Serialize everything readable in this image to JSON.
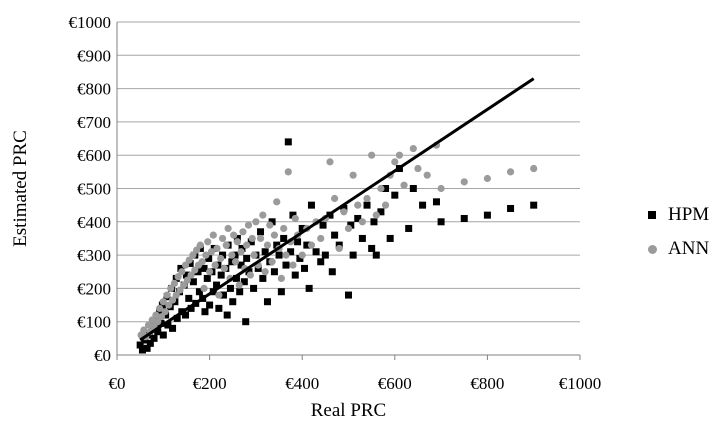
{
  "chart_data": {
    "type": "scatter",
    "xlabel": "Real PRC",
    "ylabel": "Estimated PRC",
    "xlim": [
      0,
      1000
    ],
    "ylim": [
      0,
      1000
    ],
    "x_ticks": [
      "€0",
      "€200",
      "€400",
      "€600",
      "€800",
      "€1000"
    ],
    "y_ticks": [
      "€0",
      "€100",
      "€200",
      "€300",
      "€400",
      "€500",
      "€600",
      "€700",
      "€800",
      "€900",
      "€1000"
    ],
    "grid": "horizontal",
    "legend_position": "right",
    "series": [
      {
        "name": "HPM",
        "marker": "square",
        "color": "#000000",
        "points": [
          [
            50,
            30
          ],
          [
            55,
            15
          ],
          [
            60,
            45
          ],
          [
            65,
            20
          ],
          [
            70,
            60
          ],
          [
            72,
            35
          ],
          [
            78,
            85
          ],
          [
            80,
            50
          ],
          [
            85,
            110
          ],
          [
            88,
            70
          ],
          [
            92,
            130
          ],
          [
            95,
            95
          ],
          [
            98,
            150
          ],
          [
            100,
            60
          ],
          [
            105,
            120
          ],
          [
            108,
            175
          ],
          [
            110,
            90
          ],
          [
            115,
            145
          ],
          [
            118,
            200
          ],
          [
            120,
            80
          ],
          [
            125,
            160
          ],
          [
            128,
            230
          ],
          [
            130,
            110
          ],
          [
            135,
            190
          ],
          [
            138,
            260
          ],
          [
            140,
            130
          ],
          [
            145,
            210
          ],
          [
            148,
            120
          ],
          [
            150,
            240
          ],
          [
            155,
            170
          ],
          [
            158,
            275
          ],
          [
            160,
            140
          ],
          [
            165,
            220
          ],
          [
            168,
            300
          ],
          [
            170,
            155
          ],
          [
            175,
            250
          ],
          [
            178,
            190
          ],
          [
            180,
            320
          ],
          [
            185,
            170
          ],
          [
            188,
            260
          ],
          [
            190,
            130
          ],
          [
            195,
            230
          ],
          [
            198,
            290
          ],
          [
            200,
            150
          ],
          [
            205,
            250
          ],
          [
            208,
            190
          ],
          [
            210,
            320
          ],
          [
            215,
            210
          ],
          [
            218,
            270
          ],
          [
            220,
            140
          ],
          [
            225,
            240
          ],
          [
            228,
            300
          ],
          [
            230,
            180
          ],
          [
            235,
            260
          ],
          [
            238,
            120
          ],
          [
            240,
            330
          ],
          [
            245,
            200
          ],
          [
            248,
            280
          ],
          [
            250,
            160
          ],
          [
            255,
            300
          ],
          [
            258,
            230
          ],
          [
            260,
            350
          ],
          [
            265,
            190
          ],
          [
            268,
            270
          ],
          [
            270,
            320
          ],
          [
            275,
            220
          ],
          [
            278,
            100
          ],
          [
            280,
            290
          ],
          [
            285,
            250
          ],
          [
            290,
            340
          ],
          [
            295,
            200
          ],
          [
            300,
            300
          ],
          [
            305,
            260
          ],
          [
            310,
            370
          ],
          [
            315,
            230
          ],
          [
            320,
            310
          ],
          [
            325,
            160
          ],
          [
            330,
            280
          ],
          [
            335,
            400
          ],
          [
            340,
            250
          ],
          [
            345,
            330
          ],
          [
            350,
            300
          ],
          [
            355,
            190
          ],
          [
            360,
            350
          ],
          [
            365,
            270
          ],
          [
            370,
            640
          ],
          [
            375,
            310
          ],
          [
            380,
            420
          ],
          [
            385,
            240
          ],
          [
            390,
            340
          ],
          [
            395,
            290
          ],
          [
            400,
            380
          ],
          [
            405,
            260
          ],
          [
            410,
            330
          ],
          [
            415,
            200
          ],
          [
            420,
            450
          ],
          [
            430,
            310
          ],
          [
            440,
            280
          ],
          [
            445,
            390
          ],
          [
            450,
            300
          ],
          [
            460,
            420
          ],
          [
            465,
            250
          ],
          [
            470,
            360
          ],
          [
            480,
            330
          ],
          [
            490,
            440
          ],
          [
            500,
            180
          ],
          [
            505,
            390
          ],
          [
            510,
            300
          ],
          [
            520,
            410
          ],
          [
            530,
            350
          ],
          [
            540,
            450
          ],
          [
            550,
            320
          ],
          [
            555,
            400
          ],
          [
            560,
            300
          ],
          [
            570,
            430
          ],
          [
            580,
            500
          ],
          [
            590,
            350
          ],
          [
            600,
            480
          ],
          [
            610,
            560
          ],
          [
            630,
            380
          ],
          [
            640,
            500
          ],
          [
            660,
            450
          ],
          [
            690,
            460
          ],
          [
            700,
            400
          ],
          [
            750,
            410
          ],
          [
            800,
            420
          ],
          [
            850,
            440
          ],
          [
            900,
            450
          ]
        ]
      },
      {
        "name": "ANN",
        "marker": "circle",
        "color": "#9b9b9b",
        "points": [
          [
            52,
            60
          ],
          [
            58,
            75
          ],
          [
            62,
            55
          ],
          [
            68,
            90
          ],
          [
            72,
            70
          ],
          [
            76,
            105
          ],
          [
            80,
            85
          ],
          [
            84,
            120
          ],
          [
            88,
            100
          ],
          [
            92,
            140
          ],
          [
            96,
            115
          ],
          [
            100,
            160
          ],
          [
            104,
            130
          ],
          [
            108,
            180
          ],
          [
            112,
            150
          ],
          [
            116,
            200
          ],
          [
            120,
            165
          ],
          [
            124,
            215
          ],
          [
            128,
            180
          ],
          [
            132,
            235
          ],
          [
            136,
            195
          ],
          [
            140,
            250
          ],
          [
            144,
            210
          ],
          [
            148,
            270
          ],
          [
            152,
            225
          ],
          [
            156,
            285
          ],
          [
            160,
            240
          ],
          [
            164,
            300
          ],
          [
            168,
            255
          ],
          [
            172,
            315
          ],
          [
            176,
            270
          ],
          [
            180,
            330
          ],
          [
            184,
            280
          ],
          [
            188,
            200
          ],
          [
            192,
            300
          ],
          [
            196,
            340
          ],
          [
            200,
            250
          ],
          [
            204,
            310
          ],
          [
            208,
            360
          ],
          [
            212,
            270
          ],
          [
            216,
            320
          ],
          [
            220,
            180
          ],
          [
            224,
            290
          ],
          [
            228,
            350
          ],
          [
            232,
            260
          ],
          [
            236,
            330
          ],
          [
            240,
            380
          ],
          [
            244,
            230
          ],
          [
            248,
            300
          ],
          [
            252,
            360
          ],
          [
            256,
            280
          ],
          [
            260,
            340
          ],
          [
            264,
            210
          ],
          [
            268,
            310
          ],
          [
            272,
            370
          ],
          [
            276,
            260
          ],
          [
            280,
            330
          ],
          [
            284,
            390
          ],
          [
            288,
            240
          ],
          [
            292,
            350
          ],
          [
            296,
            300
          ],
          [
            300,
            400
          ],
          [
            305,
            270
          ],
          [
            310,
            350
          ],
          [
            315,
            420
          ],
          [
            320,
            250
          ],
          [
            325,
            330
          ],
          [
            330,
            390
          ],
          [
            335,
            280
          ],
          [
            340,
            360
          ],
          [
            345,
            460
          ],
          [
            350,
            320
          ],
          [
            355,
            230
          ],
          [
            360,
            380
          ],
          [
            365,
            300
          ],
          [
            370,
            550
          ],
          [
            375,
            340
          ],
          [
            380,
            270
          ],
          [
            385,
            410
          ],
          [
            390,
            360
          ],
          [
            400,
            300
          ],
          [
            410,
            380
          ],
          [
            420,
            330
          ],
          [
            430,
            400
          ],
          [
            440,
            350
          ],
          [
            450,
            410
          ],
          [
            460,
            580
          ],
          [
            470,
            470
          ],
          [
            480,
            320
          ],
          [
            490,
            430
          ],
          [
            500,
            380
          ],
          [
            510,
            540
          ],
          [
            520,
            450
          ],
          [
            530,
            400
          ],
          [
            540,
            470
          ],
          [
            550,
            600
          ],
          [
            560,
            420
          ],
          [
            570,
            500
          ],
          [
            580,
            450
          ],
          [
            590,
            540
          ],
          [
            600,
            580
          ],
          [
            610,
            600
          ],
          [
            620,
            510
          ],
          [
            640,
            620
          ],
          [
            650,
            560
          ],
          [
            670,
            540
          ],
          [
            690,
            630
          ],
          [
            700,
            500
          ],
          [
            750,
            520
          ],
          [
            800,
            530
          ],
          [
            850,
            550
          ],
          [
            900,
            560
          ]
        ]
      }
    ],
    "trendline": {
      "color": "#000000",
      "points": [
        [
          50,
          45
        ],
        [
          900,
          830
        ]
      ]
    }
  }
}
